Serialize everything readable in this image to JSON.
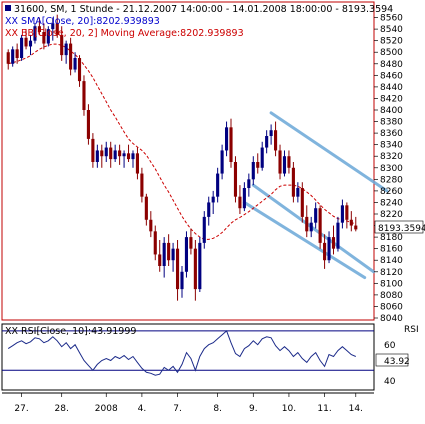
{
  "chart_data": {
    "type": "candlestick",
    "main_panel": {
      "legend": [
        {
          "text": "31600, SM, 1 Stunde - 21.12.2007 14:00:00 - 14.01.2008 18:00:00 - 8193.3594",
          "color": "#000000"
        },
        {
          "text": "XX SMA[Close, 20]:8202.939893",
          "color": "#0000cc"
        },
        {
          "text": "XX BB[Close, 20, 2] Moving Average:8202.939893",
          "color": "#cc0000"
        }
      ],
      "ylim": [
        8040,
        8580
      ],
      "yticks": [
        "8560",
        "8540",
        "8520",
        "8500",
        "8480",
        "8460",
        "8440",
        "8420",
        "8400",
        "8380",
        "8360",
        "8340",
        "8320",
        "8300",
        "8280",
        "8260",
        "8240",
        "8220",
        "8200",
        "8180",
        "8160",
        "8140",
        "8120",
        "8100",
        "8080",
        "8060",
        "8040"
      ],
      "last_price_label": "8193.3594",
      "ma_color": "#cc0000",
      "up_color": "#000080",
      "down_color": "#8b0000",
      "channel_color": "#6aa8d8",
      "candles": [
        [
          8500,
          8505,
          8470,
          8480
        ],
        [
          8480,
          8510,
          8475,
          8505
        ],
        [
          8505,
          8515,
          8480,
          8490
        ],
        [
          8490,
          8530,
          8485,
          8525
        ],
        [
          8525,
          8540,
          8505,
          8510
        ],
        [
          8510,
          8530,
          8495,
          8520
        ],
        [
          8520,
          8550,
          8515,
          8545
        ],
        [
          8545,
          8560,
          8530,
          8535
        ],
        [
          8535,
          8550,
          8505,
          8515
        ],
        [
          8515,
          8545,
          8510,
          8540
        ],
        [
          8540,
          8560,
          8520,
          8550
        ],
        [
          8550,
          8565,
          8525,
          8530
        ],
        [
          8530,
          8545,
          8485,
          8495
        ],
        [
          8495,
          8520,
          8480,
          8515
        ],
        [
          8515,
          8525,
          8460,
          8470
        ],
        [
          8470,
          8500,
          8465,
          8490
        ],
        [
          8490,
          8495,
          8440,
          8450
        ],
        [
          8450,
          8460,
          8390,
          8400
        ],
        [
          8400,
          8410,
          8340,
          8350
        ],
        [
          8350,
          8360,
          8300,
          8310
        ],
        [
          8310,
          8340,
          8300,
          8330
        ],
        [
          8330,
          8340,
          8300,
          8320
        ],
        [
          8320,
          8345,
          8310,
          8335
        ],
        [
          8335,
          8345,
          8300,
          8315
        ],
        [
          8315,
          8340,
          8310,
          8330
        ],
        [
          8330,
          8340,
          8305,
          8320
        ],
        [
          8320,
          8330,
          8300,
          8325
        ],
        [
          8325,
          8340,
          8310,
          8315
        ],
        [
          8315,
          8330,
          8300,
          8325
        ],
        [
          8325,
          8335,
          8280,
          8290
        ],
        [
          8290,
          8300,
          8240,
          8250
        ],
        [
          8250,
          8255,
          8200,
          8210
        ],
        [
          8210,
          8225,
          8180,
          8190
        ],
        [
          8190,
          8200,
          8140,
          8150
        ],
        [
          8150,
          8175,
          8120,
          8130
        ],
        [
          8130,
          8180,
          8110,
          8170
        ],
        [
          8170,
          8185,
          8130,
          8140
        ],
        [
          8140,
          8170,
          8120,
          8160
        ],
        [
          8160,
          8175,
          8070,
          8090
        ],
        [
          8090,
          8130,
          8075,
          8120
        ],
        [
          8120,
          8190,
          8110,
          8180
        ],
        [
          8180,
          8195,
          8150,
          8160
        ],
        [
          8160,
          8175,
          8070,
          8090
        ],
        [
          8090,
          8180,
          8085,
          8170
        ],
        [
          8170,
          8225,
          8160,
          8215
        ],
        [
          8215,
          8250,
          8200,
          8240
        ],
        [
          8240,
          8260,
          8220,
          8250
        ],
        [
          8250,
          8300,
          8240,
          8290
        ],
        [
          8290,
          8340,
          8280,
          8330
        ],
        [
          8330,
          8380,
          8320,
          8370
        ],
        [
          8370,
          8385,
          8300,
          8310
        ],
        [
          8310,
          8320,
          8240,
          8250
        ],
        [
          8250,
          8270,
          8220,
          8230
        ],
        [
          8230,
          8275,
          8225,
          8265
        ],
        [
          8265,
          8290,
          8250,
          8280
        ],
        [
          8280,
          8320,
          8270,
          8310
        ],
        [
          8310,
          8325,
          8290,
          8300
        ],
        [
          8300,
          8345,
          8295,
          8335
        ],
        [
          8335,
          8365,
          8325,
          8355
        ],
        [
          8355,
          8375,
          8340,
          8365
        ],
        [
          8365,
          8380,
          8320,
          8330
        ],
        [
          8330,
          8340,
          8280,
          8290
        ],
        [
          8290,
          8330,
          8285,
          8320
        ],
        [
          8320,
          8330,
          8290,
          8300
        ],
        [
          8300,
          8310,
          8240,
          8250
        ],
        [
          8250,
          8275,
          8240,
          8265
        ],
        [
          8265,
          8275,
          8205,
          8215
        ],
        [
          8215,
          8235,
          8180,
          8190
        ],
        [
          8190,
          8215,
          8180,
          8205
        ],
        [
          8205,
          8240,
          8195,
          8230
        ],
        [
          8230,
          8235,
          8160,
          8170
        ],
        [
          8170,
          8185,
          8125,
          8140
        ],
        [
          8140,
          8190,
          8135,
          8180
        ],
        [
          8180,
          8200,
          8150,
          8160
        ],
        [
          8160,
          8215,
          8155,
          8205
        ],
        [
          8205,
          8245,
          8195,
          8235
        ],
        [
          8235,
          8240,
          8195,
          8210
        ],
        [
          8210,
          8225,
          8190,
          8200
        ],
        [
          8200,
          8215,
          8190,
          8193.36
        ]
      ],
      "sma": [
        8480,
        8482,
        8484,
        8487,
        8490,
        8494,
        8500,
        8505,
        8509,
        8512,
        8514,
        8514,
        8512,
        8508,
        8502,
        8496,
        8488,
        8478,
        8468,
        8456,
        8442,
        8428,
        8414,
        8400,
        8388,
        8375,
        8362,
        8350,
        8342,
        8336,
        8330,
        8322,
        8310,
        8298,
        8284,
        8270,
        8258,
        8244,
        8230,
        8216,
        8204,
        8194,
        8186,
        8180,
        8176,
        8176,
        8178,
        8182,
        8188,
        8196,
        8204,
        8210,
        8214,
        8219,
        8224,
        8230,
        8236,
        8242,
        8248,
        8254,
        8262,
        8268,
        8270,
        8270,
        8270,
        8268,
        8264,
        8258,
        8252,
        8244,
        8236,
        8228,
        8222,
        8216,
        8212,
        8210,
        8208,
        8205,
        8203
      ]
    },
    "rsi_panel": {
      "legend": "XX RSI[Close, 10]:43.91999",
      "title": "RSI",
      "ylim": [
        10,
        75
      ],
      "levels": [
        70,
        30
      ],
      "tick_labels": [
        "60",
        "40"
      ],
      "value_label": "43.92",
      "values": [
        52,
        55,
        58,
        60,
        57,
        59,
        63,
        62,
        58,
        60,
        64,
        60,
        54,
        58,
        52,
        56,
        48,
        40,
        35,
        30,
        36,
        40,
        42,
        40,
        44,
        42,
        45,
        41,
        44,
        38,
        32,
        28,
        27,
        25,
        26,
        33,
        30,
        34,
        28,
        36,
        48,
        42,
        30,
        44,
        52,
        56,
        58,
        62,
        66,
        70,
        58,
        47,
        44,
        52,
        55,
        60,
        56,
        62,
        64,
        63,
        55,
        50,
        54,
        50,
        44,
        48,
        42,
        38,
        44,
        48,
        40,
        34,
        46,
        44,
        50,
        54,
        50,
        46,
        44
      ]
    },
    "x_axis_labels": [
      "27.",
      "28.",
      "2008",
      "4.",
      "7.",
      "8.",
      "9.",
      "10.",
      "11.",
      "14."
    ],
    "x_axis_label_index": [
      3,
      12,
      22,
      30,
      38,
      47,
      55,
      63,
      71,
      80
    ]
  }
}
